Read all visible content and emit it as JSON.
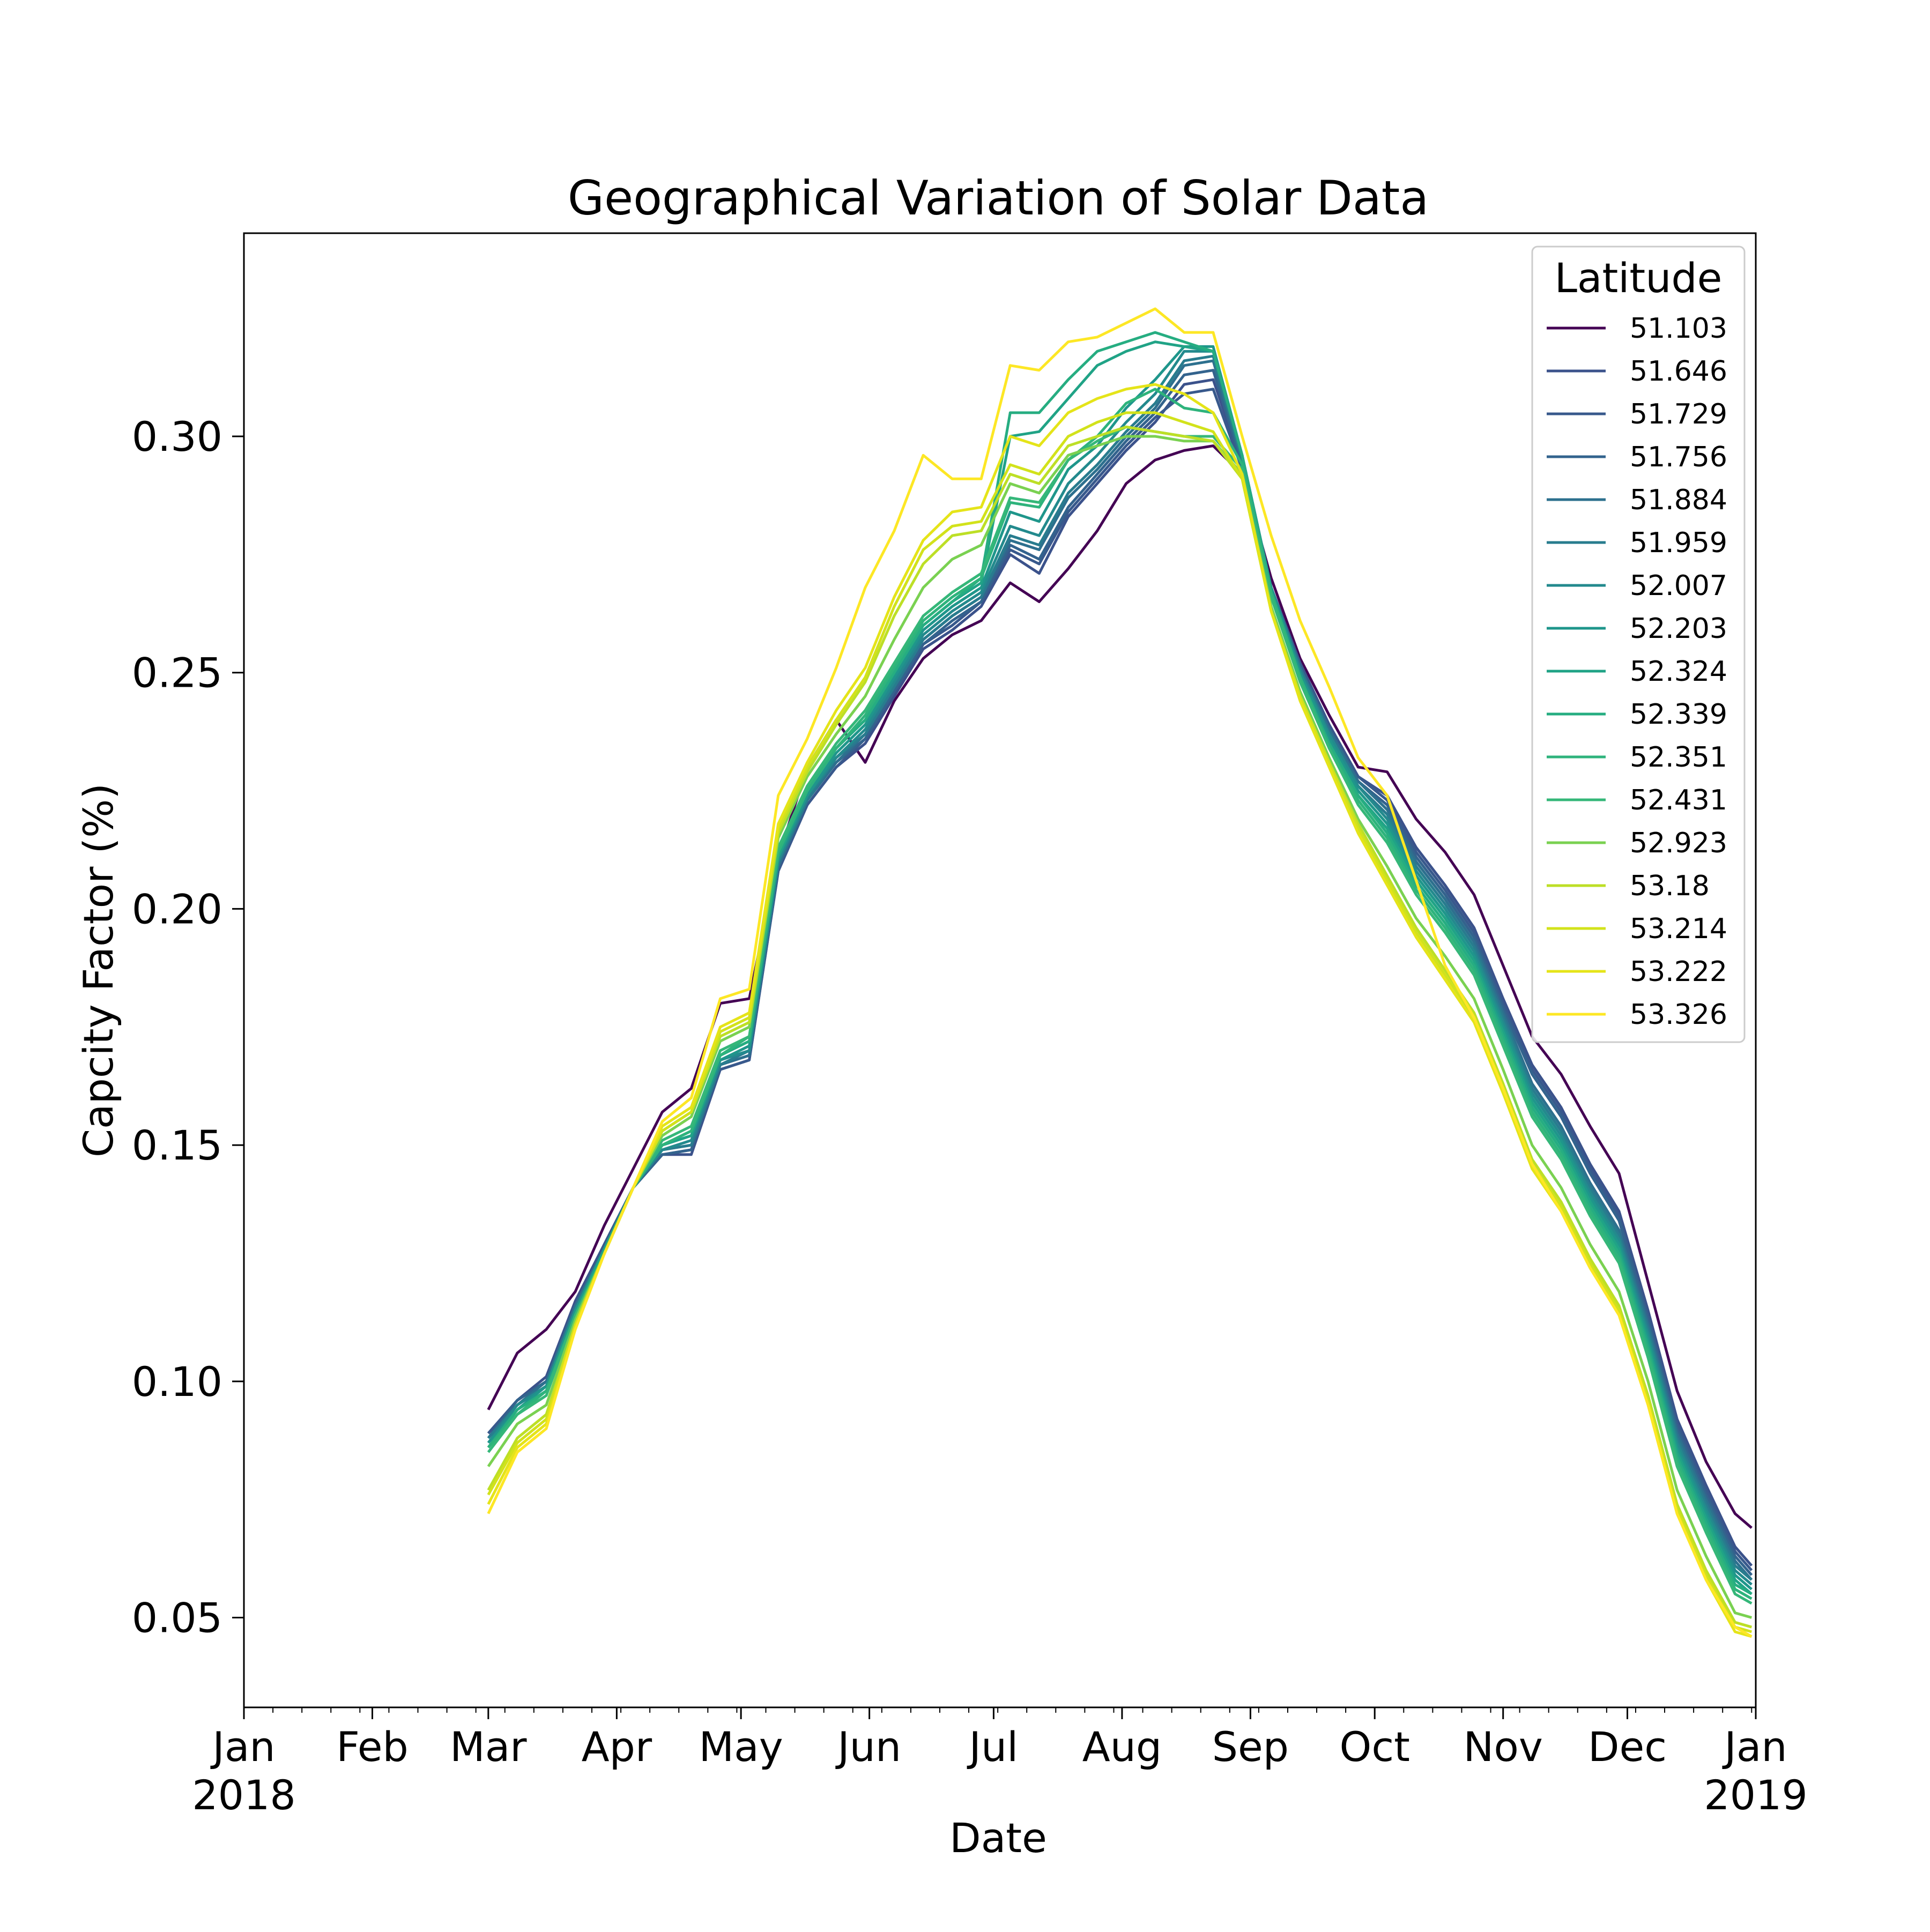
{
  "chart_data": {
    "type": "line",
    "title": "Geographical Variation of Solar Data",
    "xlabel": "Date",
    "ylabel": "Capcity Factor (%)",
    "xlim": [
      "2018-01-01",
      "2019-01-01"
    ],
    "ylim": [
      0.031,
      0.343
    ],
    "grid": false,
    "legend_title": "Latitude",
    "legend_position": "top-right",
    "y_ticks": [
      {
        "value": 0.05,
        "label": "0.05"
      },
      {
        "value": 0.1,
        "label": "0.10"
      },
      {
        "value": 0.15,
        "label": "0.15"
      },
      {
        "value": 0.2,
        "label": "0.20"
      },
      {
        "value": 0.25,
        "label": "0.25"
      },
      {
        "value": 0.3,
        "label": "0.30"
      }
    ],
    "x_ticks": [
      {
        "date": "2018-01-01",
        "label": "Jan",
        "sublabel": "2018"
      },
      {
        "date": "2018-02-01",
        "label": "Feb",
        "sublabel": ""
      },
      {
        "date": "2018-03-01",
        "label": "Mar",
        "sublabel": ""
      },
      {
        "date": "2018-04-01",
        "label": "Apr",
        "sublabel": ""
      },
      {
        "date": "2018-05-01",
        "label": "May",
        "sublabel": ""
      },
      {
        "date": "2018-06-01",
        "label": "Jun",
        "sublabel": ""
      },
      {
        "date": "2018-07-01",
        "label": "Jul",
        "sublabel": ""
      },
      {
        "date": "2018-08-01",
        "label": "Aug",
        "sublabel": ""
      },
      {
        "date": "2018-09-01",
        "label": "Sep",
        "sublabel": ""
      },
      {
        "date": "2018-10-01",
        "label": "Oct",
        "sublabel": ""
      },
      {
        "date": "2018-11-01",
        "label": "Nov",
        "sublabel": ""
      },
      {
        "date": "2018-12-01",
        "label": "Dec",
        "sublabel": ""
      },
      {
        "date": "2019-01-01",
        "label": "Jan",
        "sublabel": "2019"
      }
    ],
    "x": [
      "2018-03-01",
      "2018-03-08",
      "2018-03-15",
      "2018-03-22",
      "2018-03-29",
      "2018-04-05",
      "2018-04-12",
      "2018-04-19",
      "2018-04-26",
      "2018-05-03",
      "2018-05-10",
      "2018-05-17",
      "2018-05-24",
      "2018-05-31",
      "2018-06-07",
      "2018-06-14",
      "2018-06-21",
      "2018-06-28",
      "2018-07-05",
      "2018-07-12",
      "2018-07-19",
      "2018-07-26",
      "2018-08-02",
      "2018-08-09",
      "2018-08-16",
      "2018-08-23",
      "2018-08-30",
      "2018-09-06",
      "2018-09-13",
      "2018-09-20",
      "2018-09-27",
      "2018-10-04",
      "2018-10-11",
      "2018-10-18",
      "2018-10-25",
      "2018-11-01",
      "2018-11-08",
      "2018-11-15",
      "2018-11-22",
      "2018-11-29",
      "2018-12-06",
      "2018-12-13",
      "2018-12-20",
      "2018-12-27",
      "2018-12-31"
    ],
    "series": [
      {
        "name": "51.103",
        "color": "#440154",
        "values": [
          0.094,
          0.106,
          0.111,
          0.119,
          0.133,
          0.145,
          0.157,
          0.162,
          0.18,
          0.181,
          0.211,
          0.23,
          0.24,
          0.231,
          0.244,
          0.253,
          0.258,
          0.261,
          0.269,
          0.265,
          0.272,
          0.28,
          0.29,
          0.295,
          0.297,
          0.298,
          0.292,
          0.27,
          0.253,
          0.241,
          0.23,
          0.229,
          0.219,
          0.212,
          0.203,
          0.188,
          0.173,
          0.165,
          0.154,
          0.144,
          0.121,
          0.098,
          0.083,
          0.072,
          0.069
        ]
      },
      {
        "name": "51.646",
        "color": "#3b528b",
        "values": [
          0.089,
          0.096,
          0.101,
          0.117,
          0.129,
          0.141,
          0.148,
          0.148,
          0.166,
          0.168,
          0.208,
          0.222,
          0.23,
          0.235,
          0.245,
          0.255,
          0.259,
          0.264,
          0.275,
          0.271,
          0.283,
          0.29,
          0.297,
          0.303,
          0.311,
          0.312,
          0.294,
          0.268,
          0.252,
          0.239,
          0.228,
          0.224,
          0.213,
          0.205,
          0.196,
          0.181,
          0.167,
          0.158,
          0.146,
          0.136,
          0.115,
          0.092,
          0.078,
          0.065,
          0.061
        ]
      },
      {
        "name": "51.729",
        "color": "#38598c",
        "values": [
          0.089,
          0.096,
          0.1,
          0.116,
          0.129,
          0.141,
          0.148,
          0.149,
          0.166,
          0.168,
          0.208,
          0.222,
          0.23,
          0.236,
          0.246,
          0.256,
          0.26,
          0.265,
          0.276,
          0.273,
          0.284,
          0.291,
          0.298,
          0.304,
          0.309,
          0.31,
          0.293,
          0.268,
          0.252,
          0.239,
          0.228,
          0.223,
          0.212,
          0.204,
          0.195,
          0.18,
          0.166,
          0.157,
          0.145,
          0.135,
          0.114,
          0.091,
          0.077,
          0.064,
          0.06
        ]
      },
      {
        "name": "51.756",
        "color": "#33638d",
        "values": [
          0.088,
          0.096,
          0.1,
          0.116,
          0.128,
          0.141,
          0.148,
          0.149,
          0.167,
          0.169,
          0.209,
          0.223,
          0.231,
          0.236,
          0.246,
          0.256,
          0.261,
          0.265,
          0.277,
          0.274,
          0.285,
          0.292,
          0.299,
          0.305,
          0.313,
          0.314,
          0.294,
          0.268,
          0.251,
          0.238,
          0.227,
          0.222,
          0.211,
          0.203,
          0.194,
          0.179,
          0.165,
          0.156,
          0.144,
          0.134,
          0.113,
          0.09,
          0.076,
          0.063,
          0.059
        ]
      },
      {
        "name": "51.884",
        "color": "#2d708e",
        "values": [
          0.088,
          0.095,
          0.1,
          0.116,
          0.128,
          0.141,
          0.149,
          0.15,
          0.167,
          0.169,
          0.209,
          0.223,
          0.231,
          0.237,
          0.247,
          0.257,
          0.262,
          0.266,
          0.278,
          0.276,
          0.287,
          0.293,
          0.3,
          0.306,
          0.315,
          0.316,
          0.295,
          0.268,
          0.251,
          0.238,
          0.227,
          0.221,
          0.21,
          0.202,
          0.193,
          0.178,
          0.163,
          0.154,
          0.142,
          0.132,
          0.112,
          0.089,
          0.075,
          0.062,
          0.058
        ]
      },
      {
        "name": "51.959",
        "color": "#287c8e",
        "values": [
          0.088,
          0.095,
          0.099,
          0.115,
          0.128,
          0.141,
          0.149,
          0.15,
          0.167,
          0.17,
          0.21,
          0.223,
          0.232,
          0.237,
          0.247,
          0.257,
          0.262,
          0.266,
          0.279,
          0.277,
          0.288,
          0.294,
          0.301,
          0.307,
          0.316,
          0.317,
          0.295,
          0.268,
          0.251,
          0.237,
          0.226,
          0.22,
          0.209,
          0.201,
          0.192,
          0.177,
          0.162,
          0.153,
          0.141,
          0.131,
          0.111,
          0.088,
          0.074,
          0.061,
          0.058
        ]
      },
      {
        "name": "52.007",
        "color": "#238a8d",
        "values": [
          0.087,
          0.095,
          0.099,
          0.115,
          0.128,
          0.141,
          0.149,
          0.151,
          0.168,
          0.17,
          0.21,
          0.224,
          0.232,
          0.238,
          0.248,
          0.258,
          0.263,
          0.267,
          0.281,
          0.279,
          0.29,
          0.296,
          0.303,
          0.309,
          0.318,
          0.318,
          0.296,
          0.268,
          0.25,
          0.237,
          0.226,
          0.219,
          0.208,
          0.2,
          0.191,
          0.176,
          0.161,
          0.152,
          0.14,
          0.13,
          0.11,
          0.087,
          0.073,
          0.06,
          0.057
        ]
      },
      {
        "name": "52.203",
        "color": "#1f968b",
        "values": [
          0.087,
          0.094,
          0.099,
          0.115,
          0.128,
          0.141,
          0.15,
          0.152,
          0.168,
          0.171,
          0.211,
          0.224,
          0.233,
          0.239,
          0.249,
          0.259,
          0.264,
          0.268,
          0.284,
          0.282,
          0.293,
          0.298,
          0.306,
          0.312,
          0.319,
          0.319,
          0.296,
          0.268,
          0.25,
          0.236,
          0.225,
          0.218,
          0.207,
          0.199,
          0.19,
          0.175,
          0.16,
          0.151,
          0.139,
          0.129,
          0.109,
          0.086,
          0.072,
          0.059,
          0.056
        ]
      },
      {
        "name": "52.324",
        "color": "#20a386",
        "values": [
          0.086,
          0.094,
          0.098,
          0.114,
          0.128,
          0.141,
          0.15,
          0.152,
          0.169,
          0.172,
          0.211,
          0.225,
          0.234,
          0.24,
          0.25,
          0.26,
          0.265,
          0.269,
          0.3,
          0.301,
          0.308,
          0.315,
          0.318,
          0.32,
          0.319,
          0.318,
          0.296,
          0.267,
          0.249,
          0.235,
          0.224,
          0.217,
          0.206,
          0.198,
          0.189,
          0.174,
          0.159,
          0.15,
          0.138,
          0.128,
          0.108,
          0.085,
          0.071,
          0.058,
          0.055
        ]
      },
      {
        "name": "52.339",
        "color": "#26ad81",
        "values": [
          0.086,
          0.094,
          0.098,
          0.114,
          0.127,
          0.141,
          0.15,
          0.153,
          0.169,
          0.172,
          0.212,
          0.225,
          0.234,
          0.24,
          0.25,
          0.26,
          0.265,
          0.27,
          0.305,
          0.305,
          0.312,
          0.318,
          0.32,
          0.322,
          0.32,
          0.318,
          0.296,
          0.267,
          0.249,
          0.235,
          0.224,
          0.216,
          0.205,
          0.197,
          0.188,
          0.173,
          0.158,
          0.149,
          0.137,
          0.127,
          0.107,
          0.084,
          0.07,
          0.057,
          0.055
        ]
      },
      {
        "name": "52.351",
        "color": "#2eb37c",
        "values": [
          0.086,
          0.093,
          0.098,
          0.114,
          0.127,
          0.141,
          0.15,
          0.153,
          0.169,
          0.173,
          0.212,
          0.225,
          0.234,
          0.241,
          0.251,
          0.261,
          0.266,
          0.27,
          0.286,
          0.285,
          0.295,
          0.3,
          0.307,
          0.31,
          0.306,
          0.305,
          0.294,
          0.267,
          0.249,
          0.234,
          0.223,
          0.215,
          0.204,
          0.196,
          0.187,
          0.172,
          0.157,
          0.148,
          0.136,
          0.126,
          0.106,
          0.083,
          0.069,
          0.056,
          0.054
        ]
      },
      {
        "name": "52.431",
        "color": "#35b779",
        "values": [
          0.085,
          0.093,
          0.097,
          0.114,
          0.127,
          0.141,
          0.151,
          0.154,
          0.17,
          0.173,
          0.213,
          0.226,
          0.235,
          0.242,
          0.252,
          0.262,
          0.267,
          0.271,
          0.287,
          0.286,
          0.295,
          0.299,
          0.302,
          0.301,
          0.3,
          0.3,
          0.293,
          0.266,
          0.248,
          0.234,
          0.222,
          0.214,
          0.203,
          0.195,
          0.186,
          0.171,
          0.156,
          0.147,
          0.135,
          0.125,
          0.105,
          0.082,
          0.068,
          0.055,
          0.053
        ]
      },
      {
        "name": "52.923",
        "color": "#7ad151",
        "values": [
          0.082,
          0.091,
          0.095,
          0.113,
          0.127,
          0.141,
          0.152,
          0.156,
          0.172,
          0.175,
          0.215,
          0.228,
          0.237,
          0.245,
          0.257,
          0.268,
          0.274,
          0.277,
          0.29,
          0.288,
          0.296,
          0.298,
          0.3,
          0.3,
          0.299,
          0.299,
          0.292,
          0.264,
          0.246,
          0.232,
          0.219,
          0.209,
          0.198,
          0.19,
          0.181,
          0.166,
          0.15,
          0.141,
          0.129,
          0.119,
          0.1,
          0.077,
          0.063,
          0.051,
          0.05
        ]
      },
      {
        "name": "53.18",
        "color": "#bddf26",
        "values": [
          0.077,
          0.088,
          0.093,
          0.112,
          0.127,
          0.141,
          0.153,
          0.157,
          0.173,
          0.176,
          0.216,
          0.229,
          0.239,
          0.248,
          0.262,
          0.273,
          0.279,
          0.28,
          0.292,
          0.29,
          0.298,
          0.3,
          0.302,
          0.301,
          0.3,
          0.299,
          0.291,
          0.263,
          0.245,
          0.231,
          0.218,
          0.207,
          0.196,
          0.187,
          0.178,
          0.163,
          0.147,
          0.138,
          0.126,
          0.116,
          0.097,
          0.074,
          0.06,
          0.049,
          0.048
        ]
      },
      {
        "name": "53.214",
        "color": "#d2e21b",
        "values": [
          0.076,
          0.087,
          0.092,
          0.112,
          0.127,
          0.141,
          0.153,
          0.157,
          0.174,
          0.177,
          0.217,
          0.23,
          0.24,
          0.249,
          0.264,
          0.276,
          0.281,
          0.282,
          0.294,
          0.292,
          0.3,
          0.303,
          0.305,
          0.305,
          0.303,
          0.301,
          0.291,
          0.263,
          0.245,
          0.231,
          0.217,
          0.206,
          0.195,
          0.186,
          0.177,
          0.162,
          0.146,
          0.137,
          0.125,
          0.115,
          0.096,
          0.073,
          0.059,
          0.048,
          0.047
        ]
      },
      {
        "name": "53.222",
        "color": "#e5e419",
        "values": [
          0.074,
          0.086,
          0.091,
          0.111,
          0.127,
          0.141,
          0.154,
          0.158,
          0.175,
          0.178,
          0.218,
          0.231,
          0.242,
          0.251,
          0.266,
          0.278,
          0.284,
          0.285,
          0.3,
          0.298,
          0.305,
          0.308,
          0.31,
          0.311,
          0.309,
          0.305,
          0.292,
          0.263,
          0.244,
          0.23,
          0.216,
          0.205,
          0.194,
          0.185,
          0.176,
          0.161,
          0.145,
          0.136,
          0.124,
          0.114,
          0.095,
          0.072,
          0.058,
          0.047,
          0.046
        ]
      },
      {
        "name": "53.326",
        "color": "#fde725",
        "values": [
          0.072,
          0.085,
          0.09,
          0.111,
          0.127,
          0.141,
          0.155,
          0.16,
          0.181,
          0.183,
          0.224,
          0.236,
          0.251,
          0.268,
          0.28,
          0.296,
          0.291,
          0.291,
          0.315,
          0.314,
          0.32,
          0.321,
          0.324,
          0.327,
          0.322,
          0.322,
          0.3,
          0.279,
          0.261,
          0.247,
          0.232,
          0.224,
          0.206,
          0.188,
          0.177,
          0.162,
          0.146,
          0.136,
          0.124,
          0.114,
          0.095,
          0.072,
          0.058,
          0.048,
          0.046
        ]
      }
    ]
  }
}
